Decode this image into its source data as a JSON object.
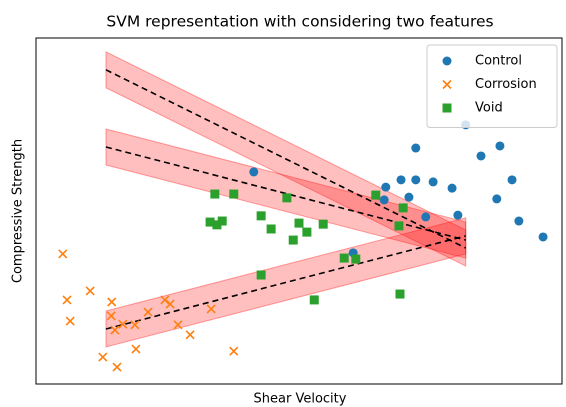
{
  "chart_data": {
    "type": "scatter",
    "title": "SVM representation with considering two features",
    "x_label": "Shear Velocity",
    "y_label": "Compressive Strength",
    "xlim": [
      0,
      100
    ],
    "ylim": [
      0,
      100
    ],
    "legend": "upper right",
    "series": [
      {
        "name": "Control",
        "color": "#1f77b4",
        "marker": "circle",
        "x": [
          41.4,
          66.5,
          69.4,
          72.2,
          72.2,
          75.5,
          79.1,
          81.7,
          84.6,
          88.2,
          90.5,
          87.6,
          80.2,
          91.8,
          96.4,
          70.9,
          66.2,
          74.1,
          60.3
        ],
        "values": [
          61.3,
          56.9,
          59.0,
          68.2,
          59.0,
          58.4,
          56.6,
          74.9,
          65.9,
          68.8,
          59.0,
          53.5,
          48.8,
          47.1,
          42.5,
          54.0,
          53.2,
          48.3,
          37.9
        ]
      },
      {
        "name": "Corrosion",
        "color": "#ff7f0e",
        "marker": "x",
        "x": [
          5.1,
          5.9,
          6.5,
          10.3,
          14.4,
          14.3,
          15.0,
          16.5,
          18.8,
          12.7,
          15.4,
          19.0,
          21.3,
          24.5,
          25.5,
          27.0,
          29.3,
          33.3,
          37.6
        ],
        "values": [
          37.6,
          24.3,
          18.2,
          26.9,
          23.7,
          19.7,
          15.6,
          17.3,
          17.1,
          7.8,
          4.9,
          10.1,
          20.8,
          24.3,
          23.1,
          17.1,
          14.2,
          21.7,
          9.5
        ]
      },
      {
        "name": "Void",
        "color": "#2ca02c",
        "marker": "square",
        "x": [
          34.0,
          37.6,
          33.1,
          34.4,
          35.4,
          42.8,
          44.7,
          47.7,
          50.0,
          51.5,
          48.9,
          54.6,
          42.8,
          52.9,
          58.6,
          60.8,
          64.6,
          69.8,
          69.0,
          69.2
        ],
        "values": [
          54.9,
          54.9,
          46.8,
          46.0,
          47.1,
          48.6,
          44.8,
          53.8,
          46.5,
          43.9,
          41.6,
          46.2,
          31.5,
          24.3,
          36.4,
          36.1,
          54.6,
          50.9,
          45.7,
          26.0
        ]
      }
    ],
    "decision_lines": [
      {
        "x": [
          13.3,
          81.7
        ],
        "y": [
          90.8,
          39.3
        ]
      },
      {
        "x": [
          13.3,
          81.7
        ],
        "y": [
          68.5,
          41.6
        ]
      },
      {
        "x": [
          13.3,
          81.7
        ],
        "y": [
          15.9,
          42.8
        ]
      }
    ],
    "band_halfwidth": 5.2,
    "band_color": "#ff0000"
  }
}
